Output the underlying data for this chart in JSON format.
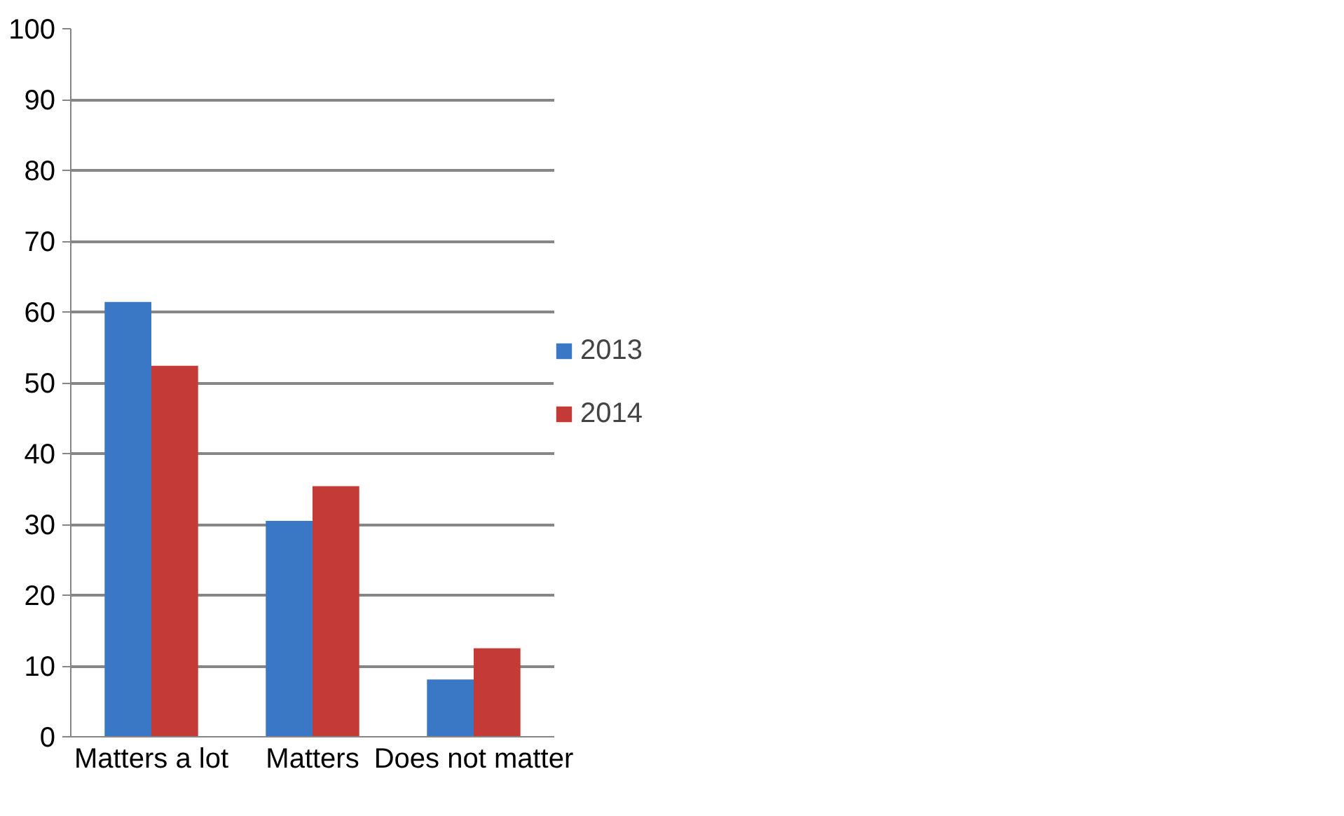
{
  "chart_data": {
    "type": "bar",
    "categories": [
      "Matters a lot",
      "Matters",
      "Does not matter"
    ],
    "series": [
      {
        "name": "2013",
        "color": "#3a78c6",
        "values": [
          61.4,
          30.5,
          8.1
        ]
      },
      {
        "name": "2014",
        "color": "#c43a36",
        "values": [
          52.4,
          35.4,
          12.5
        ]
      }
    ],
    "ylim": [
      0,
      100
    ],
    "yticks": [
      0,
      10,
      20,
      30,
      40,
      50,
      60,
      70,
      80,
      90,
      100
    ],
    "grid": "y",
    "legend": "right"
  }
}
